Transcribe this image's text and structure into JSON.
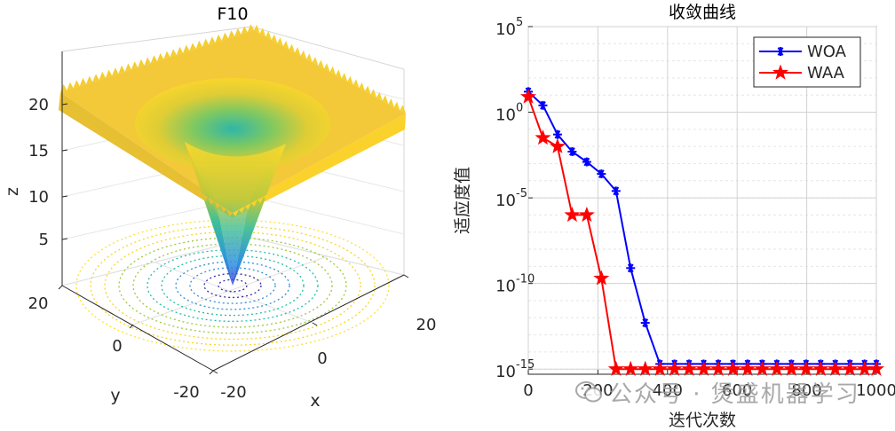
{
  "chart_data": [
    {
      "type": "surface3d",
      "title": "F10",
      "xlabel": "x",
      "ylabel": "y",
      "zlabel": "z",
      "xticks": [
        "-20",
        "0",
        "20"
      ],
      "yticks": [
        "-20",
        "0",
        "20"
      ],
      "zticks": [
        "5",
        "10",
        "15",
        "20"
      ],
      "xlim": [
        -32,
        32
      ],
      "ylim": [
        -32,
        32
      ],
      "zlim": [
        0,
        22
      ],
      "colormap": [
        "#3e26a8",
        "#2f8fd5",
        "#25bfa4",
        "#9fc93e",
        "#f9d528",
        "#ffe033"
      ],
      "contour": true
    },
    {
      "type": "line",
      "title": "收敛曲线",
      "xlabel": "迭代次数",
      "ylabel": "适应度值",
      "yscale": "log",
      "xlim": [
        0,
        1000
      ],
      "ylim_exponent": [
        -15.3,
        5
      ],
      "xticks": [
        "0",
        "200",
        "400",
        "600",
        "800",
        "1000"
      ],
      "ytick_base": "10",
      "ytick_exponents": [
        "5",
        "0",
        "-5",
        "-10",
        "-15"
      ],
      "legend_position": "top-right",
      "grid": true,
      "series": [
        {
          "name": "WOA",
          "color": "#0000ff",
          "marker": "asterisk",
          "x": [
            0,
            42,
            84,
            126,
            168,
            210,
            252,
            294,
            336,
            378,
            420,
            462,
            504,
            546,
            588,
            630,
            672,
            714,
            756,
            798,
            840,
            882,
            924,
            966,
            1000
          ],
          "log10_y": [
            1.2,
            0.4,
            -1.3,
            -2.3,
            -2.9,
            -3.6,
            -4.6,
            -9.1,
            -12.3,
            -14.7,
            -14.7,
            -14.7,
            -14.7,
            -14.7,
            -14.7,
            -14.7,
            -14.7,
            -14.7,
            -14.7,
            -14.7,
            -14.7,
            -14.7,
            -14.7,
            -14.7,
            -14.7
          ]
        },
        {
          "name": "WAA",
          "color": "#ff0000",
          "marker": "pentagram",
          "x": [
            0,
            42,
            84,
            126,
            168,
            210,
            252,
            294,
            336,
            378,
            420,
            462,
            504,
            546,
            588,
            630,
            672,
            714,
            756,
            798,
            840,
            882,
            924,
            966,
            1000
          ],
          "log10_y": [
            0.9,
            -1.5,
            -2.0,
            -6.0,
            -6.0,
            -9.7,
            -15.0,
            -15.0,
            -15.0,
            -15.0,
            -15.0,
            -15.0,
            -15.0,
            -15.0,
            -15.0,
            -15.0,
            -15.0,
            -15.0,
            -15.0,
            -15.0,
            -15.0,
            -15.0,
            -15.0,
            -15.0,
            -15.0
          ]
        }
      ]
    }
  ],
  "watermark": {
    "text": "公众号 · 煲盛机器学习"
  }
}
